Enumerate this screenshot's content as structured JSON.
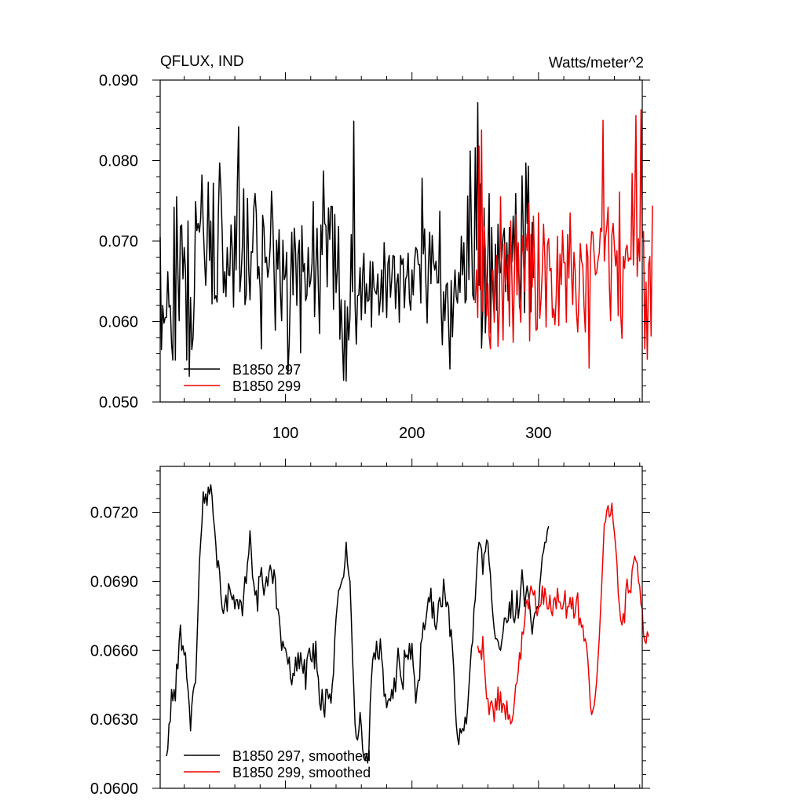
{
  "chart_data": [
    {
      "type": "line",
      "title": "QFLUX, IND",
      "units": "Watts/meter^2",
      "xlim": [
        1,
        382
      ],
      "ylim": [
        0.05,
        0.09
      ],
      "x_major_ticks": [
        100,
        200,
        300
      ],
      "y_major_ticks": [
        0.05,
        0.06,
        0.07,
        0.08,
        0.09
      ],
      "x_tick_labels": [
        "100",
        "200",
        "300"
      ],
      "y_tick_labels": [
        "0.050",
        "0.060",
        "0.070",
        "0.080",
        "0.090"
      ],
      "legend_position": "bottom-left",
      "grid": false,
      "series": [
        {
          "name": "B1850 297",
          "color": "#000000",
          "x_start": 1,
          "values": [
            0.0705,
            0.0565,
            0.062,
            0.0598,
            0.0605,
            0.0605,
            0.0662,
            0.0618,
            0.062,
            0.0572,
            0.0552,
            0.0742,
            0.0552,
            0.0755,
            0.0663,
            0.0601,
            0.0718,
            0.072,
            0.0653,
            0.0692,
            0.0664,
            0.0552,
            0.0725,
            0.0532,
            0.063,
            0.0565,
            0.058,
            0.0631,
            0.0749,
            0.0713,
            0.0722,
            0.0711,
            0.0728,
            0.0782,
            0.0721,
            0.068,
            0.0645,
            0.0693,
            0.0773,
            0.0676,
            0.0725,
            0.0622,
            0.0772,
            0.0628,
            0.0632,
            0.0624,
            0.0736,
            0.0797,
            0.0764,
            0.0712,
            0.0636,
            0.0662,
            0.0631,
            0.0692,
            0.0658,
            0.0657,
            0.072,
            0.0688,
            0.0618,
            0.0731,
            0.0664,
            0.0772,
            0.0842,
            0.0637,
            0.0659,
            0.0694,
            0.0765,
            0.0621,
            0.0633,
            0.0753,
            0.0664,
            0.0627,
            0.0687,
            0.0686,
            0.0741,
            0.0759,
            0.0734,
            0.0653,
            0.0668,
            0.0641,
            0.0566,
            0.0732,
            0.0717,
            0.0673,
            0.068,
            0.0655,
            0.0667,
            0.0694,
            0.0762,
            0.0727,
            0.0661,
            0.0589,
            0.0701,
            0.0665,
            0.0714,
            0.0637,
            0.0601,
            0.0701,
            0.0652,
            0.0657,
            0.0686,
            0.0535,
            0.0574,
            0.0643,
            0.0711,
            0.0633,
            0.0716,
            0.0687,
            0.062,
            0.0684,
            0.0701,
            0.0561,
            0.0719,
            0.0662,
            0.0672,
            0.0626,
            0.0633,
            0.0692,
            0.0643,
            0.0651,
            0.0672,
            0.0749,
            0.0606,
            0.0663,
            0.0716,
            0.0642,
            0.0585,
            0.072,
            0.0683,
            0.0787,
            0.0722,
            0.0719,
            0.0643,
            0.0741,
            0.0702,
            0.0743,
            0.0743,
            0.0615,
            0.0733,
            0.0636,
            0.0664,
            0.0718,
            0.0578,
            0.0627,
            0.0574,
            0.0527,
            0.0626,
            0.0526,
            0.0618,
            0.0577,
            0.0606,
            0.0708,
            0.0637,
            0.0849,
            0.0623,
            0.0572,
            0.0632,
            0.0633,
            0.0667,
            0.0602,
            0.0658,
            0.0685,
            0.061,
            0.0647,
            0.0625,
            0.0627,
            0.0675,
            0.0593,
            0.0674,
            0.0642,
            0.0637,
            0.0634,
            0.0659,
            0.0608,
            0.0628,
            0.0664,
            0.0612,
            0.0698,
            0.0659,
            0.0605,
            0.0672,
            0.0682,
            0.063,
            0.0652,
            0.0682,
            0.0681,
            0.0616,
            0.0648,
            0.0659,
            0.0599,
            0.0682,
            0.0671,
            0.0678,
            0.0617,
            0.0653,
            0.0657,
            0.0685,
            0.0627,
            0.0614,
            0.0664,
            0.0633,
            0.0674,
            0.0692,
            0.0689,
            0.0671,
            0.0671,
            0.0623,
            0.0778,
            0.0684,
            0.0715,
            0.0648,
            0.0598,
            0.067,
            0.0711,
            0.0647,
            0.0707,
            0.0675,
            0.0664,
            0.0675,
            0.0648,
            0.0648,
            0.0737,
            0.0619,
            0.0571,
            0.0637,
            0.0601,
            0.0645,
            0.0648,
            0.0593,
            0.0541,
            0.0651,
            0.0581,
            0.0629,
            0.0664,
            0.0631,
            0.0623,
            0.0661,
            0.0636,
            0.0706,
            0.0658,
            0.0698,
            0.0623,
            0.0628,
            0.0756,
            0.0652,
            0.0812,
            0.0714,
            0.0633,
            0.0627,
            0.0816,
            0.0689,
            0.0872,
            0.0645,
            0.0771,
            0.0567,
            0.0615,
            0.0741,
            0.0586,
            0.0631,
            0.0681,
            0.0759,
            0.0586,
            0.0717,
            0.0638,
            0.0605,
            0.0696,
            0.0614,
            0.0721,
            0.066,
            0.0661,
            0.0681,
            0.0706,
            0.0716,
            0.0637,
            0.0698,
            0.0626,
            0.0717,
            0.0708,
            0.0674,
            0.0731,
            0.0675,
            0.0759,
            0.067,
            0.0694,
            0.0617,
            0.0656,
            0.0781,
            0.0707,
            0.0611,
            0.0797,
            0.0722,
            0.0793,
            0.0658,
            0.0612,
            0.0723,
            0.0654
          ]
        },
        {
          "name": "B1850 299",
          "color": "#ee0000",
          "x_start": 250,
          "values": [
            0.0623,
            0.0664,
            0.0605,
            0.0818,
            0.064,
            0.0838,
            0.0613,
            0.0718,
            0.0689,
            0.0607,
            0.0647,
            0.0582,
            0.0566,
            0.0648,
            0.0664,
            0.0599,
            0.0663,
            0.0682,
            0.0569,
            0.0614,
            0.0755,
            0.065,
            0.0577,
            0.0696,
            0.0646,
            0.0669,
            0.0682,
            0.0594,
            0.0725,
            0.0653,
            0.0574,
            0.066,
            0.0733,
            0.0633,
            0.0698,
            0.0625,
            0.0599,
            0.0707,
            0.0684,
            0.0637,
            0.0709,
            0.0688,
            0.0747,
            0.0576,
            0.0708,
            0.0643,
            0.0731,
            0.0666,
            0.0589,
            0.0591,
            0.0735,
            0.0604,
            0.0627,
            0.0663,
            0.0721,
            0.068,
            0.0593,
            0.0695,
            0.0703,
            0.0663,
            0.0666,
            0.0605,
            0.0616,
            0.0596,
            0.0631,
            0.0706,
            0.0595,
            0.0684,
            0.0646,
            0.0713,
            0.0673,
            0.0673,
            0.0599,
            0.0708,
            0.0654,
            0.0735,
            0.0664,
            0.0621,
            0.0686,
            0.0663,
            0.0612,
            0.0587,
            0.0632,
            0.0697,
            0.0675,
            0.0669,
            0.0618,
            0.0587,
            0.0696,
            0.068,
            0.0542,
            0.0681,
            0.0712,
            0.071,
            0.0682,
            0.0658,
            0.0661,
            0.0676,
            0.0685,
            0.0716,
            0.0712,
            0.085,
            0.0675,
            0.0705,
            0.0718,
            0.0742,
            0.0645,
            0.0601,
            0.0708,
            0.0722,
            0.0693,
            0.0669,
            0.0688,
            0.0607,
            0.0761,
            0.0608,
            0.0579,
            0.0681,
            0.0666,
            0.069,
            0.0695,
            0.0675,
            0.0679,
            0.0677,
            0.0784,
            0.067,
            0.0739,
            0.0856,
            0.0656,
            0.0703,
            0.0675,
            0.0863,
            0.0704,
            0.0712,
            0.0566,
            0.0649,
            0.0553,
            0.067,
            0.0681,
            0.0582,
            0.0744
          ]
        }
      ]
    },
    {
      "type": "line",
      "title": "",
      "xlim": [
        1,
        382
      ],
      "ylim": [
        0.06,
        0.074
      ],
      "x_major_ticks": [
        100,
        200,
        300
      ],
      "y_major_ticks": [
        0.06,
        0.063,
        0.066,
        0.069,
        0.072
      ],
      "y_tick_labels": [
        "0.0600",
        "0.0630",
        "0.0660",
        "0.0690",
        "0.0720"
      ],
      "legend_position": "bottom-left",
      "grid": false,
      "series": [
        {
          "name": "B1850 297, smoothed",
          "color": "#000000",
          "x_start": 6,
          "values": [
            0.0614,
            0.0617,
            0.0628,
            0.0629,
            0.0643,
            0.0638,
            0.0643,
            0.0638,
            0.0654,
            0.0652,
            0.0664,
            0.0671,
            0.066,
            0.0662,
            0.0658,
            0.0659,
            0.0648,
            0.0643,
            0.0636,
            0.0625,
            0.0636,
            0.0642,
            0.0645,
            0.0646,
            0.0662,
            0.0679,
            0.0698,
            0.0707,
            0.0715,
            0.0729,
            0.0724,
            0.0728,
            0.0723,
            0.0731,
            0.0728,
            0.0732,
            0.0727,
            0.0718,
            0.0713,
            0.0706,
            0.0696,
            0.0699,
            0.0694,
            0.0684,
            0.0678,
            0.0676,
            0.068,
            0.0684,
            0.0677,
            0.0689,
            0.0687,
            0.0684,
            0.0682,
            0.0684,
            0.0678,
            0.0682,
            0.0682,
            0.0678,
            0.0682,
            0.0681,
            0.0675,
            0.0684,
            0.0692,
            0.0689,
            0.0698,
            0.0702,
            0.0712,
            0.0703,
            0.0692,
            0.0689,
            0.0684,
            0.0686,
            0.0677,
            0.0692,
            0.0692,
            0.0696,
            0.0689,
            0.0684,
            0.0688,
            0.0692,
            0.0688,
            0.0694,
            0.0697,
            0.0694,
            0.0689,
            0.0695,
            0.0691,
            0.0678,
            0.0678,
            0.0675,
            0.0668,
            0.066,
            0.0664,
            0.0661,
            0.0661,
            0.0658,
            0.0654,
            0.0657,
            0.0648,
            0.0645,
            0.065,
            0.0649,
            0.0657,
            0.0651,
            0.0659,
            0.0652,
            0.0659,
            0.0654,
            0.065,
            0.0656,
            0.0643,
            0.0656,
            0.0659,
            0.0661,
            0.0656,
            0.0655,
            0.0663,
            0.0652,
            0.0664,
            0.0651,
            0.0648,
            0.0637,
            0.0634,
            0.0643,
            0.0635,
            0.0631,
            0.0643,
            0.0643,
            0.0639,
            0.0641,
            0.0637,
            0.0645,
            0.065,
            0.0665,
            0.0674,
            0.068,
            0.0686,
            0.0687,
            0.0689,
            0.0691,
            0.0692,
            0.0698,
            0.0707,
            0.0698,
            0.0693,
            0.069,
            0.0675,
            0.0657,
            0.0644,
            0.0628,
            0.0622,
            0.0621,
            0.0625,
            0.0633,
            0.0627,
            0.0617,
            0.0613,
            0.0612,
            0.0615,
            0.0611,
            0.0617,
            0.0637,
            0.0648,
            0.0656,
            0.0659,
            0.0656,
            0.0664,
            0.0657,
            0.0656,
            0.0665,
            0.0657,
            0.0652,
            0.064,
            0.0641,
            0.0635,
            0.0638,
            0.0639,
            0.0638,
            0.0643,
            0.0639,
            0.0648,
            0.0642,
            0.0652,
            0.0661,
            0.0655,
            0.0649,
            0.0646,
            0.0643,
            0.066,
            0.0657,
            0.0658,
            0.0656,
            0.0663,
            0.0656,
            0.0663,
            0.0653,
            0.0648,
            0.0637,
            0.0643,
            0.0647,
            0.0647,
            0.0663,
            0.0665,
            0.0672,
            0.0669,
            0.0673,
            0.0678,
            0.0683,
            0.0681,
            0.0687,
            0.0674,
            0.0681,
            0.0671,
            0.0669,
            0.0673,
            0.0681,
            0.0683,
            0.0679,
            0.0679,
            0.0691,
            0.0685,
            0.0679,
            0.0681,
            0.0679,
            0.0666,
            0.0669,
            0.0661,
            0.0652,
            0.0638,
            0.0628,
            0.0622,
            0.0619,
            0.0626,
            0.0624,
            0.0626,
            0.0625,
            0.0631,
            0.0628,
            0.0635,
            0.0644,
            0.0653,
            0.0661,
            0.0664,
            0.0678,
            0.0682,
            0.0693,
            0.0703,
            0.0707,
            0.0706,
            0.0704,
            0.0693,
            0.0702,
            0.0703,
            0.0708,
            0.0707,
            0.0698,
            0.0693,
            0.0682,
            0.0675,
            0.0669,
            0.0665,
            0.0665,
            0.0664,
            0.0661,
            0.066,
            0.0664,
            0.0668,
            0.0674,
            0.0674,
            0.0672,
            0.0673,
            0.0681,
            0.0674,
            0.0686,
            0.0674,
            0.0672,
            0.0676,
            0.0686,
            0.0674,
            0.0679,
            0.0687,
            0.0695,
            0.0688,
            0.0679,
            0.0684,
            0.0688,
            0.0684,
            0.068,
            0.0673,
            0.0667,
            0.0673,
            0.0676,
            0.0677,
            0.0679,
            0.0678,
            0.0688,
            0.0694,
            0.0701,
            0.0703,
            0.0707,
            0.0707,
            0.0712,
            0.0714
          ]
        },
        {
          "name": "B1850 299, smoothed",
          "color": "#ee0000",
          "x_start": 252,
          "values": [
            0.0662,
            0.0659,
            0.066,
            0.0656,
            0.0666,
            0.0655,
            0.0647,
            0.0639,
            0.0639,
            0.0632,
            0.0637,
            0.0638,
            0.0635,
            0.0629,
            0.0639,
            0.0634,
            0.0644,
            0.0634,
            0.0642,
            0.0633,
            0.0637,
            0.0636,
            0.063,
            0.0638,
            0.063,
            0.0632,
            0.0628,
            0.0629,
            0.0632,
            0.0638,
            0.0645,
            0.0646,
            0.0651,
            0.0659,
            0.0656,
            0.0668,
            0.0667,
            0.0672,
            0.068,
            0.0682,
            0.0678,
            0.0684,
            0.0688,
            0.0686,
            0.0684,
            0.0686,
            0.0678,
            0.0675,
            0.0679,
            0.0679,
            0.068,
            0.0688,
            0.068,
            0.0687,
            0.0683,
            0.0678,
            0.0678,
            0.0684,
            0.0677,
            0.0675,
            0.0682,
            0.0683,
            0.0678,
            0.0687,
            0.0681,
            0.0681,
            0.0678,
            0.0678,
            0.0681,
            0.0686,
            0.0674,
            0.0679,
            0.0679,
            0.0683,
            0.0678,
            0.0683,
            0.0674,
            0.0676,
            0.0682,
            0.0685,
            0.0671,
            0.0674,
            0.067,
            0.0671,
            0.0664,
            0.0665,
            0.0662,
            0.0656,
            0.0647,
            0.0636,
            0.0632,
            0.0634,
            0.0636,
            0.0641,
            0.0647,
            0.0656,
            0.0665,
            0.0677,
            0.0689,
            0.0702,
            0.0715,
            0.0716,
            0.0721,
            0.0723,
            0.0718,
            0.0719,
            0.0724,
            0.0716,
            0.0711,
            0.0705,
            0.0698,
            0.0685,
            0.0679,
            0.0673,
            0.0671,
            0.0676,
            0.0672,
            0.0686,
            0.0691,
            0.0685,
            0.0686,
            0.0685,
            0.0695,
            0.0698,
            0.0701,
            0.0699,
            0.0698,
            0.069,
            0.0688,
            0.068,
            0.0678,
            0.0667,
            0.0664,
            0.0663,
            0.0668,
            0.0666
          ]
        }
      ]
    }
  ]
}
